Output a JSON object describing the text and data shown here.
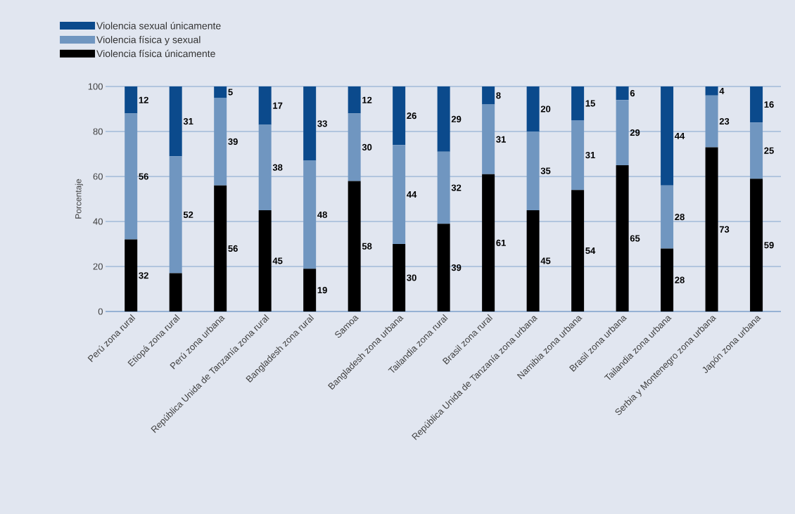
{
  "chart_data": {
    "type": "bar",
    "stacked": true,
    "ylabel": "Porcentaje",
    "categories": [
      "Perú zona rural",
      "Etiopá zona rural",
      "Perú zona urbana",
      "República Unida de Tanzanía zona rural",
      "Bangladesh zona rural",
      "Samoa",
      "Bangladesh zona urbana",
      "Tailandia zona rural",
      "Brasil zona rural",
      "República Unida de Tanzanía zona urbana",
      "Namibia zona urbana",
      "Brasil zona urbana",
      "Tailandia zona urbana",
      "Serbia y Montenegro zona urbana",
      "Japón zona urbana"
    ],
    "series": [
      {
        "name": "Violencia física únicamente",
        "color": "#000000",
        "values": [
          32,
          17,
          56,
          45,
          19,
          58,
          30,
          39,
          61,
          45,
          54,
          65,
          28,
          73,
          59
        ],
        "value_labels": [
          "32",
          null,
          "56",
          "45",
          "19",
          "58",
          "30",
          "39",
          "61",
          "45",
          "54",
          "65",
          "28",
          "73",
          "59"
        ]
      },
      {
        "name": "Violencia física y sexual",
        "color": "#7096c0",
        "values": [
          56,
          52,
          39,
          38,
          48,
          30,
          44,
          32,
          31,
          35,
          31,
          29,
          28,
          23,
          25
        ],
        "value_labels": [
          "56",
          "52",
          "39",
          "38",
          "48",
          "30",
          "44",
          "32",
          "31",
          "35",
          "31",
          "29",
          "28",
          "23",
          "25"
        ]
      },
      {
        "name": "Violencia sexual únicamente",
        "color": "#0b4a8c",
        "values": [
          12,
          31,
          5,
          17,
          33,
          12,
          26,
          29,
          8,
          20,
          15,
          6,
          44,
          4,
          16
        ],
        "value_labels": [
          "12",
          "31",
          "5",
          "17",
          "33",
          "12",
          "26",
          "29",
          "8",
          "20",
          "15",
          "6",
          "44",
          "4",
          "16"
        ]
      }
    ],
    "ylim": [
      0,
      100
    ],
    "yticks": [
      0,
      20,
      40,
      60,
      80,
      100
    ],
    "grid": "y",
    "legend": "top left"
  }
}
